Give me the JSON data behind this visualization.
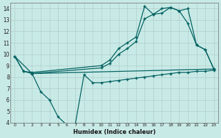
{
  "xlabel": "Humidex (Indice chaleur)",
  "xlim": [
    -0.5,
    23.5
  ],
  "ylim": [
    4,
    14.5
  ],
  "background_color": "#c8eae6",
  "grid_color": "#b0ccca",
  "line_color": "#006060",
  "line1": {
    "x": [
      0,
      1,
      2,
      10,
      11,
      12,
      13,
      14,
      15,
      16,
      17,
      18,
      19,
      20,
      21,
      22,
      23
    ],
    "y": [
      9.8,
      8.5,
      8.4,
      9.0,
      9.5,
      10.5,
      11.0,
      11.5,
      14.2,
      13.5,
      14.0,
      14.1,
      13.8,
      12.7,
      10.8,
      10.4,
      8.7
    ]
  },
  "line2": {
    "x": [
      0,
      1,
      2,
      10,
      11,
      12,
      13,
      14,
      15,
      16,
      17,
      18,
      19,
      20,
      21,
      22,
      23
    ],
    "y": [
      9.8,
      8.5,
      8.3,
      8.8,
      9.2,
      10.0,
      10.5,
      11.1,
      13.1,
      13.5,
      13.6,
      14.1,
      13.8,
      14.0,
      10.8,
      10.4,
      8.7
    ]
  },
  "line3": {
    "x": [
      0,
      2,
      23
    ],
    "y": [
      9.8,
      8.3,
      8.7
    ]
  },
  "line4": {
    "x": [
      2,
      3,
      4,
      5,
      6,
      7,
      8,
      9,
      10,
      11,
      12,
      13,
      14,
      15,
      16,
      17,
      18,
      19,
      20,
      21,
      22,
      23
    ],
    "y": [
      8.3,
      6.7,
      6.0,
      4.5,
      3.8,
      3.9,
      8.2,
      7.5,
      7.5,
      7.6,
      7.7,
      7.8,
      7.9,
      8.0,
      8.1,
      8.2,
      8.3,
      8.4,
      8.4,
      8.5,
      8.5,
      8.6
    ]
  },
  "xticks": [
    0,
    1,
    2,
    3,
    4,
    5,
    6,
    7,
    8,
    9,
    10,
    11,
    12,
    13,
    14,
    15,
    16,
    17,
    18,
    19,
    20,
    21,
    22,
    23
  ],
  "yticks": [
    4,
    5,
    6,
    7,
    8,
    9,
    10,
    11,
    12,
    13,
    14
  ]
}
